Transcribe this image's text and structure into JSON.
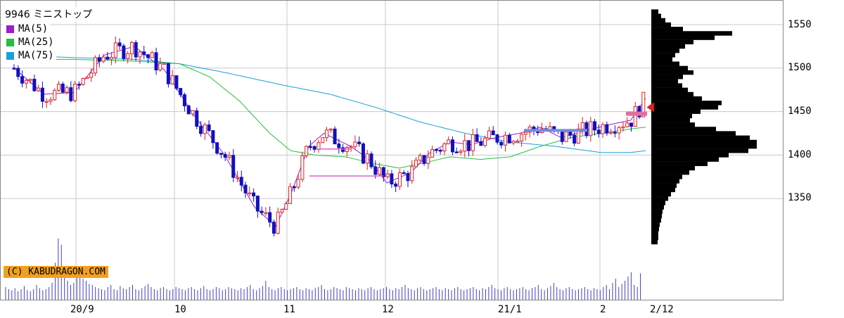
{
  "legend": {
    "title": "9946 ミニストップ",
    "items": [
      {
        "label": "MA(5)",
        "color": "#9a1ec8"
      },
      {
        "label": "MA(25)",
        "color": "#20c040"
      },
      {
        "label": "MA(75)",
        "color": "#1aa0d8"
      }
    ]
  },
  "copyright": "(C) KABUDRAGON.COM",
  "chart_data": {
    "type": "candlestick",
    "y_ticks": [
      "1550",
      "1500",
      "1450",
      "1400",
      "1350"
    ],
    "x_tick_labels": [
      "20/9",
      "10",
      "11",
      "12",
      "21/1",
      "2",
      "2/12"
    ],
    "ylim": [
      1290,
      1570
    ],
    "grid": true,
    "colors": {
      "up": "#e02020",
      "down": "#1010c0",
      "ma5": "#9a1ec8",
      "ma25": "#20c040",
      "ma75": "#1aa0d8",
      "volume": "#4040c0",
      "profile": "#000000",
      "marker": "#e02020"
    },
    "ma5_anchors": [
      [
        0,
        1500
      ],
      [
        10,
        1470
      ],
      [
        20,
        1472
      ],
      [
        30,
        1515
      ],
      [
        40,
        1525
      ],
      [
        50,
        1498
      ],
      [
        60,
        1445
      ],
      [
        70,
        1400
      ],
      [
        80,
        1340
      ],
      [
        87,
        1318
      ],
      [
        92,
        1355
      ],
      [
        98,
        1410
      ],
      [
        103,
        1425
      ],
      [
        112,
        1410
      ],
      [
        118,
        1395
      ],
      [
        124,
        1368
      ],
      [
        132,
        1380
      ],
      [
        138,
        1402
      ],
      [
        145,
        1415
      ],
      [
        152,
        1412
      ],
      [
        160,
        1420
      ],
      [
        168,
        1425
      ],
      [
        175,
        1432
      ],
      [
        182,
        1420
      ],
      [
        190,
        1428
      ],
      [
        198,
        1435
      ],
      [
        205,
        1440
      ],
      [
        210,
        1465
      ]
    ],
    "ma25_anchors": [
      [
        0,
        1510
      ],
      [
        20,
        1510
      ],
      [
        40,
        1508
      ],
      [
        55,
        1505
      ],
      [
        65,
        1490
      ],
      [
        75,
        1462
      ],
      [
        85,
        1425
      ],
      [
        92,
        1405
      ],
      [
        100,
        1400
      ],
      [
        110,
        1398
      ],
      [
        120,
        1390
      ],
      [
        128,
        1385
      ],
      [
        135,
        1390
      ],
      [
        145,
        1398
      ],
      [
        155,
        1395
      ],
      [
        165,
        1398
      ],
      [
        175,
        1410
      ],
      [
        185,
        1420
      ],
      [
        195,
        1425
      ],
      [
        205,
        1430
      ],
      [
        210,
        1432
      ]
    ],
    "ma75_anchors": [
      [
        0,
        1515
      ],
      [
        20,
        1512
      ],
      [
        40,
        1510
      ],
      [
        55,
        1505
      ],
      [
        70,
        1495
      ],
      [
        90,
        1480
      ],
      [
        105,
        1470
      ],
      [
        120,
        1455
      ],
      [
        135,
        1438
      ],
      [
        150,
        1425
      ],
      [
        165,
        1415
      ],
      [
        180,
        1410
      ],
      [
        195,
        1403
      ],
      [
        205,
        1403
      ],
      [
        210,
        1405
      ]
    ],
    "volume_series": [
      12,
      10,
      9,
      11,
      8,
      10,
      13,
      9,
      8,
      10,
      14,
      11,
      9,
      10,
      12,
      16,
      35,
      58,
      52,
      25,
      18,
      14,
      16,
      22,
      28,
      20,
      18,
      15,
      14,
      12,
      11,
      10,
      9,
      12,
      14,
      10,
      9,
      13,
      11,
      10,
      12,
      14,
      10,
      9,
      11,
      13,
      15,
      12,
      10,
      9,
      11,
      12,
      10,
      9,
      10,
      12,
      11,
      10,
      9,
      11,
      12,
      10,
      9,
      11,
      13,
      10,
      9,
      10,
      12,
      11,
      9,
      10,
      12,
      11,
      10,
      9,
      11,
      10,
      12,
      14,
      10,
      9,
      11,
      13,
      18,
      12,
      10,
      9,
      11,
      12,
      10,
      9,
      10,
      11,
      12,
      10,
      9,
      11,
      10,
      9,
      11,
      12,
      14,
      10,
      9,
      10,
      12,
      11,
      10,
      9,
      12,
      11,
      10,
      9,
      11,
      10,
      9,
      11,
      12,
      10,
      9,
      10,
      11,
      12,
      10,
      9,
      11,
      10,
      12,
      14,
      11,
      10,
      9,
      11,
      12,
      10,
      9,
      10,
      11,
      12,
      10,
      9,
      11,
      10,
      9,
      11,
      12,
      10,
      9,
      10,
      11,
      12,
      10,
      9,
      11,
      10,
      12,
      14,
      11,
      10,
      9,
      11,
      12,
      10,
      9,
      10,
      11,
      12,
      10,
      9,
      11,
      12,
      14,
      10,
      9,
      11,
      13,
      16,
      12,
      10,
      9,
      11,
      12,
      10,
      9,
      10,
      11,
      12,
      10,
      9,
      11,
      10,
      9,
      12,
      14,
      10,
      16,
      20,
      12,
      15,
      18,
      22,
      26,
      14,
      12,
      25
    ],
    "price_profile": [
      [
        1565,
        10
      ],
      [
        1560,
        14
      ],
      [
        1555,
        20
      ],
      [
        1550,
        28
      ],
      [
        1545,
        45
      ],
      [
        1540,
        115
      ],
      [
        1535,
        90
      ],
      [
        1530,
        60
      ],
      [
        1525,
        48
      ],
      [
        1520,
        40
      ],
      [
        1515,
        34
      ],
      [
        1510,
        30
      ],
      [
        1505,
        40
      ],
      [
        1500,
        52
      ],
      [
        1495,
        60
      ],
      [
        1490,
        45
      ],
      [
        1485,
        38
      ],
      [
        1480,
        44
      ],
      [
        1475,
        52
      ],
      [
        1470,
        60
      ],
      [
        1465,
        72
      ],
      [
        1460,
        100
      ],
      [
        1455,
        95
      ],
      [
        1450,
        70
      ],
      [
        1445,
        58
      ],
      [
        1440,
        55
      ],
      [
        1435,
        62
      ],
      [
        1430,
        92
      ],
      [
        1425,
        120
      ],
      [
        1420,
        140
      ],
      [
        1415,
        150
      ],
      [
        1410,
        150
      ],
      [
        1405,
        138
      ],
      [
        1400,
        110
      ],
      [
        1395,
        96
      ],
      [
        1390,
        80
      ],
      [
        1385,
        62
      ],
      [
        1380,
        54
      ],
      [
        1375,
        44
      ],
      [
        1370,
        40
      ],
      [
        1365,
        36
      ],
      [
        1360,
        34
      ],
      [
        1355,
        28
      ],
      [
        1350,
        24
      ],
      [
        1345,
        20
      ],
      [
        1340,
        18
      ],
      [
        1335,
        16
      ],
      [
        1330,
        15
      ],
      [
        1325,
        14
      ],
      [
        1320,
        12
      ],
      [
        1315,
        11
      ],
      [
        1310,
        10
      ],
      [
        1305,
        10
      ],
      [
        1300,
        9
      ]
    ]
  }
}
